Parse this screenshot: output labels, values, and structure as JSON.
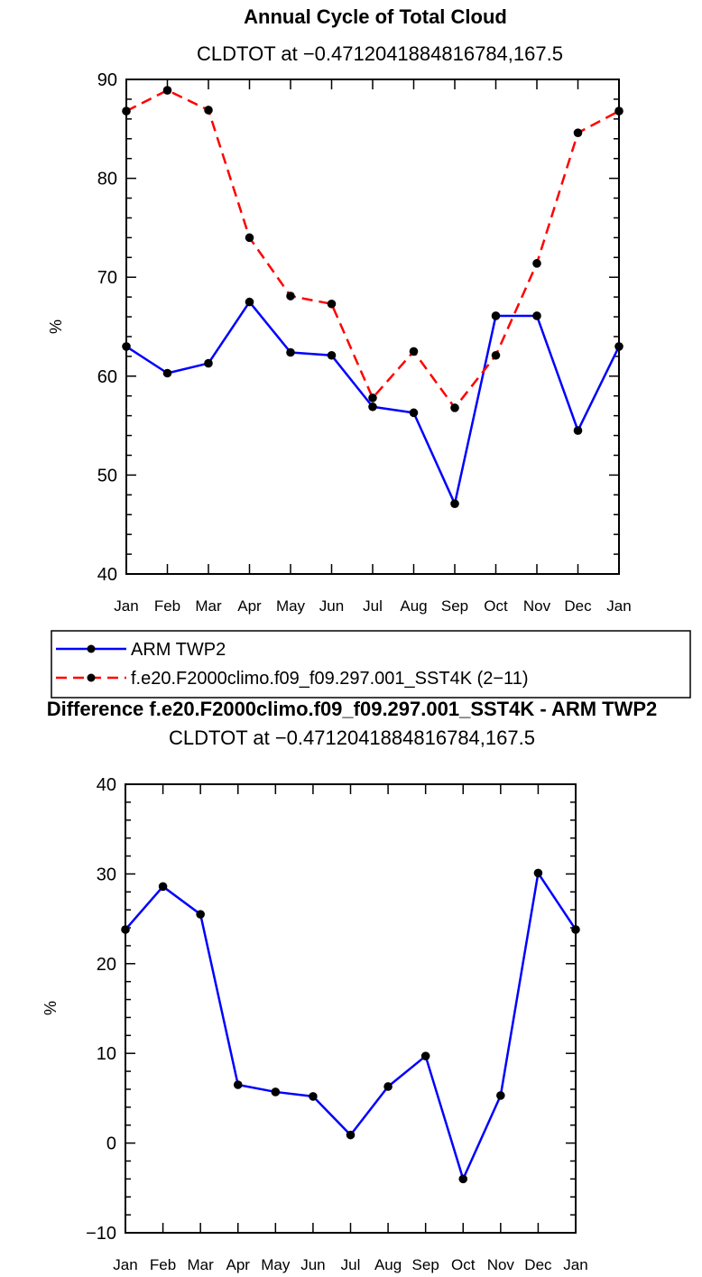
{
  "chart_data": [
    {
      "type": "line",
      "title": "Annual Cycle of Total Cloud",
      "subtitle": "CLDTOT at −0.4712041884816784,167.5",
      "ylabel": "%",
      "ylim": [
        40,
        90
      ],
      "yticks": [
        40,
        50,
        60,
        70,
        80,
        90
      ],
      "categories": [
        "Jan",
        "Feb",
        "Mar",
        "Apr",
        "May",
        "Jun",
        "Jul",
        "Aug",
        "Sep",
        "Oct",
        "Nov",
        "Dec",
        "Jan"
      ],
      "series": [
        {
          "name": "ARM TWP2",
          "color": "#0000ff",
          "dash": "solid",
          "values": [
            63.0,
            60.3,
            61.3,
            67.5,
            62.4,
            62.1,
            56.9,
            56.3,
            47.1,
            66.1,
            66.1,
            54.5,
            63.0
          ]
        },
        {
          "name": "f.e20.F2000climo.f09_f09.297.001_SST4K (2−11)",
          "color": "#ff0000",
          "dash": "dashed",
          "values": [
            86.8,
            88.9,
            86.9,
            74.0,
            68.1,
            67.3,
            57.8,
            62.5,
            56.8,
            62.1,
            71.4,
            84.6,
            86.8
          ]
        }
      ]
    },
    {
      "type": "line",
      "title": "Difference f.e20.F2000climo.f09_f09.297.001_SST4K - ARM TWP2",
      "subtitle": "CLDTOT at −0.4712041884816784,167.5",
      "ylabel": "%",
      "ylim": [
        -10,
        40
      ],
      "yticks": [
        -10,
        0,
        10,
        20,
        30,
        40
      ],
      "categories": [
        "Jan",
        "Feb",
        "Mar",
        "Apr",
        "May",
        "Jun",
        "Jul",
        "Aug",
        "Sep",
        "Oct",
        "Nov",
        "Dec",
        "Jan"
      ],
      "series": [
        {
          "name": "",
          "color": "#0000ff",
          "dash": "solid",
          "values": [
            23.8,
            28.6,
            25.5,
            6.5,
            5.7,
            5.2,
            0.9,
            6.3,
            9.7,
            -4.0,
            5.3,
            30.1,
            23.8
          ]
        }
      ]
    }
  ]
}
